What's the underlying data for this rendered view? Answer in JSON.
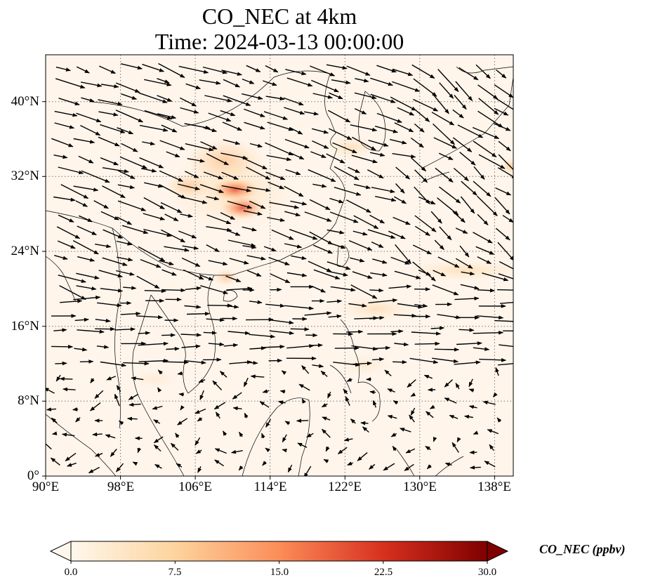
{
  "title": {
    "line1": "CO_NEC at 4km",
    "line2": "Time: 2024-03-13 00:00:00"
  },
  "map": {
    "lon_range": [
      90,
      140
    ],
    "lat_range": [
      0,
      45
    ],
    "gridlines": true,
    "lat_ticks": [
      {
        "value": 40,
        "label": "40°N"
      },
      {
        "value": 32,
        "label": "32°N"
      },
      {
        "value": 24,
        "label": "24°N"
      },
      {
        "value": 16,
        "label": "16°N"
      },
      {
        "value": 8,
        "label": "8°N"
      },
      {
        "value": 0,
        "label": "0°"
      }
    ],
    "lon_ticks": [
      {
        "value": 90,
        "label": "90°E"
      },
      {
        "value": 98,
        "label": "98°E"
      },
      {
        "value": 106,
        "label": "106°E"
      },
      {
        "value": 114,
        "label": "114°E"
      },
      {
        "value": 122,
        "label": "122°E"
      },
      {
        "value": 130,
        "label": "130°E"
      },
      {
        "value": 138,
        "label": "138°E"
      }
    ],
    "background_color": "#fff5eb",
    "wind_vectors": "shown as black arrows, mostly westerly flow"
  },
  "colorbar": {
    "label": "CO_NEC (ppbv)",
    "min": 0.0,
    "max": 30.0,
    "extend": "both",
    "colormap": "OrRd",
    "ticks": [
      {
        "value": 0.0,
        "label": "0.0"
      },
      {
        "value": 7.5,
        "label": "7.5"
      },
      {
        "value": 15.0,
        "label": "15.0"
      },
      {
        "value": 22.5,
        "label": "22.5"
      },
      {
        "value": 30.0,
        "label": "30.0"
      }
    ],
    "colors": [
      "#fff7ec",
      "#fdd49e",
      "#fc8d59",
      "#d7301f",
      "#7f0000"
    ]
  }
}
